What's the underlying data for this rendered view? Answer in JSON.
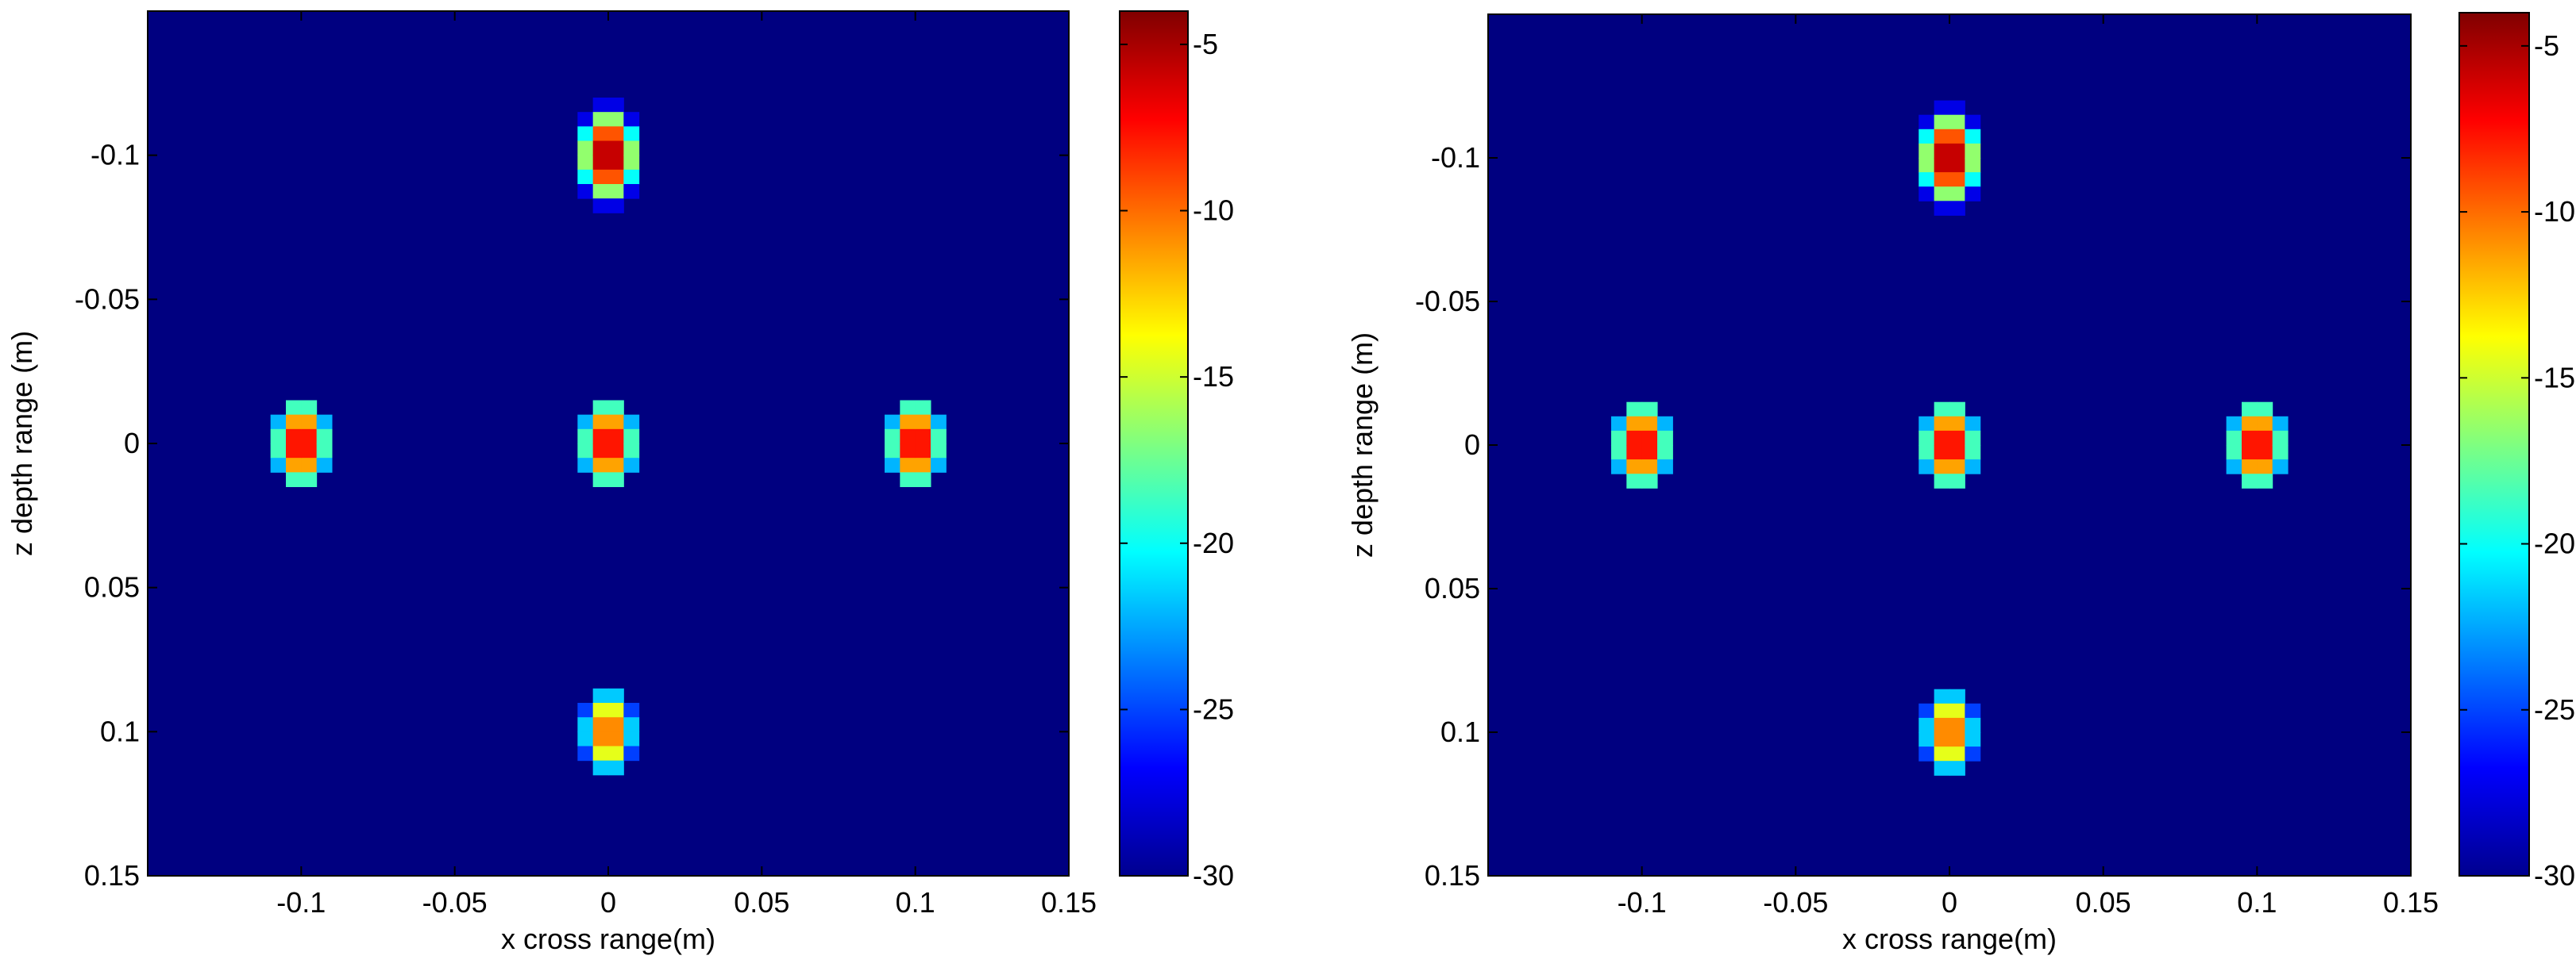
{
  "chart_data": [
    {
      "type": "heatmap",
      "xlabel": "x cross range(m)",
      "ylabel": "z depth range (m)",
      "xlim": [
        -0.15,
        0.15
      ],
      "ylim": [
        -0.15,
        0.15
      ],
      "y_direction": "reversed",
      "x_ticks": [
        "-0.1",
        "-0.05",
        "0",
        "0.05",
        "0.1",
        "0.15"
      ],
      "x_tick_values": [
        -0.1,
        -0.05,
        0,
        0.05,
        0.1,
        0.15
      ],
      "y_ticks": [
        "-0.1",
        "-0.05",
        "0",
        "0.05",
        "0.1",
        "0.15"
      ],
      "y_tick_values": [
        -0.1,
        -0.05,
        0,
        0.05,
        0.1,
        0.15
      ],
      "colormap": "jet",
      "colorbar": {
        "range": [
          -30,
          -4
        ],
        "ticks": [
          "-5",
          "-10",
          "-15",
          "-20",
          "-25",
          "-30"
        ],
        "tick_values": [
          -5,
          -10,
          -15,
          -20,
          -25,
          -30
        ]
      },
      "targets": [
        {
          "x": 0,
          "z": -0.1,
          "peak": -4
        },
        {
          "x": -0.1,
          "z": 0,
          "peak": -6
        },
        {
          "x": 0,
          "z": 0,
          "peak": -6
        },
        {
          "x": 0.1,
          "z": 0,
          "peak": -6
        },
        {
          "x": 0,
          "z": 0.1,
          "peak": -9
        }
      ]
    },
    {
      "type": "heatmap",
      "xlabel": "x cross range(m)",
      "ylabel": "z depth range (m)",
      "xlim": [
        -0.15,
        0.15
      ],
      "ylim": [
        -0.15,
        0.15
      ],
      "y_direction": "reversed",
      "x_ticks": [
        "-0.1",
        "-0.05",
        "0",
        "0.05",
        "0.1",
        "0.15"
      ],
      "x_tick_values": [
        -0.1,
        -0.05,
        0,
        0.05,
        0.1,
        0.15
      ],
      "y_ticks": [
        "-0.1",
        "-0.05",
        "0",
        "0.05",
        "0.1",
        "0.15"
      ],
      "y_tick_values": [
        -0.1,
        -0.05,
        0,
        0.05,
        0.1,
        0.15
      ],
      "colormap": "jet",
      "colorbar": {
        "range": [
          -30,
          -4
        ],
        "ticks": [
          "-5",
          "-10",
          "-15",
          "-20",
          "-25",
          "-30"
        ],
        "tick_values": [
          -5,
          -10,
          -15,
          -20,
          -25,
          -30
        ]
      },
      "targets": [
        {
          "x": 0,
          "z": -0.1,
          "peak": -4
        },
        {
          "x": -0.1,
          "z": 0,
          "peak": -6
        },
        {
          "x": 0,
          "z": 0,
          "peak": -6
        },
        {
          "x": 0.1,
          "z": 0,
          "peak": -6
        },
        {
          "x": 0,
          "z": 0.1,
          "peak": -9
        }
      ]
    }
  ]
}
